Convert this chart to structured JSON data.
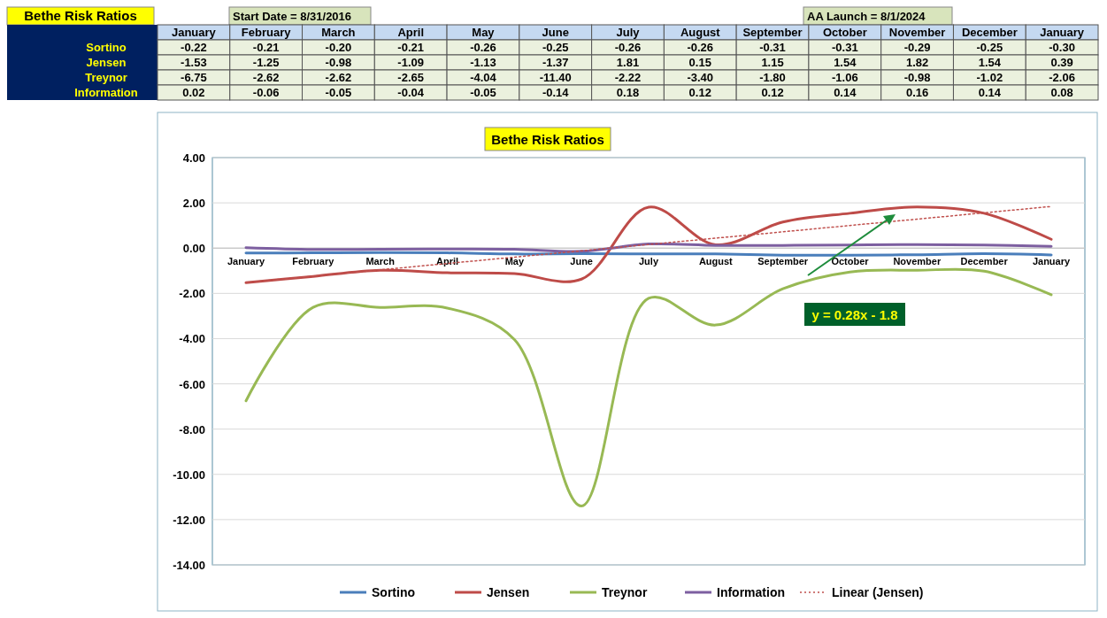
{
  "chart_data": [
    {
      "type": "other",
      "title": "Bethe Risk Ratios",
      "annotations": [
        "Start Date = 8/31/2016",
        "AA Launch = 8/1/2024"
      ],
      "categories": [
        "January",
        "February",
        "March",
        "April",
        "May",
        "June",
        "July",
        "August",
        "September",
        "October",
        "November",
        "December",
        "January"
      ],
      "series": [
        {
          "name": "Sortino",
          "values": [
            -0.22,
            -0.21,
            -0.2,
            -0.21,
            -0.26,
            -0.25,
            -0.26,
            -0.26,
            -0.31,
            -0.31,
            -0.29,
            -0.25,
            -0.3
          ],
          "value_labels": [
            "-0.22",
            "-0.21",
            "-0.20",
            "-0.21",
            "-0.26",
            "-0.25",
            "-0.26",
            "-0.26",
            "-0.31",
            "-0.31",
            "-0.29",
            "-0.25",
            "-0.30"
          ]
        },
        {
          "name": "Jensen",
          "values": [
            -1.53,
            -1.25,
            -0.98,
            -1.09,
            -1.13,
            -1.37,
            1.81,
            0.15,
            1.15,
            1.54,
            1.82,
            1.54,
            0.39
          ],
          "value_labels": [
            "-1.53",
            "-1.25",
            "-0.98",
            "-1.09",
            "-1.13",
            "-1.37",
            "1.81",
            "0.15",
            "1.15",
            "1.54",
            "1.82",
            "1.54",
            "0.39"
          ]
        },
        {
          "name": "Treynor",
          "values": [
            -6.75,
            -2.62,
            -2.62,
            -2.65,
            -4.04,
            -11.4,
            -2.22,
            -3.4,
            -1.8,
            -1.06,
            -0.98,
            -1.02,
            -2.06
          ],
          "value_labels": [
            "-6.75",
            "-2.62",
            "-2.62",
            "-2.65",
            "-4.04",
            "-11.40",
            "-2.22",
            "-3.40",
            "-1.80",
            "-1.06",
            "-0.98",
            "-1.02",
            "-2.06"
          ]
        },
        {
          "name": "Information",
          "values": [
            0.02,
            -0.06,
            -0.05,
            -0.04,
            -0.05,
            -0.14,
            0.18,
            0.12,
            0.12,
            0.14,
            0.16,
            0.14,
            0.08
          ],
          "value_labels": [
            "0.02",
            "-0.06",
            "-0.05",
            "-0.04",
            "-0.05",
            "-0.14",
            "0.18",
            "0.12",
            "0.12",
            "0.14",
            "0.16",
            "0.14",
            "0.08"
          ]
        }
      ]
    },
    {
      "type": "line",
      "title": "Bethe Risk Ratios",
      "categories": [
        "January",
        "February",
        "March",
        "April",
        "May",
        "June",
        "July",
        "August",
        "September",
        "October",
        "November",
        "December",
        "January"
      ],
      "series": [
        {
          "name": "Sortino",
          "color": "#4a7ebb",
          "values": [
            -0.22,
            -0.21,
            -0.2,
            -0.21,
            -0.26,
            -0.25,
            -0.26,
            -0.26,
            -0.31,
            -0.31,
            -0.29,
            -0.25,
            -0.3
          ]
        },
        {
          "name": "Jensen",
          "color": "#be4b48",
          "values": [
            -1.53,
            -1.25,
            -0.98,
            -1.09,
            -1.13,
            -1.37,
            1.81,
            0.15,
            1.15,
            1.54,
            1.82,
            1.54,
            0.39
          ]
        },
        {
          "name": "Treynor",
          "color": "#98b954",
          "values": [
            -6.75,
            -2.62,
            -2.62,
            -2.65,
            -4.04,
            -11.4,
            -2.22,
            -3.4,
            -1.8,
            -1.06,
            -0.98,
            -1.02,
            -2.06
          ]
        },
        {
          "name": "Information",
          "color": "#7d5fa0",
          "values": [
            0.02,
            -0.06,
            -0.05,
            -0.04,
            -0.05,
            -0.14,
            0.18,
            0.12,
            0.12,
            0.14,
            0.16,
            0.14,
            0.08
          ]
        },
        {
          "name": "Linear (Jensen)",
          "color": "#c0504d",
          "type": "line",
          "line_style": "dotted",
          "values": [
            -1.52,
            -1.24,
            -0.96,
            -0.68,
            -0.4,
            -0.12,
            0.16,
            0.44,
            0.72,
            1.0,
            1.28,
            1.56,
            1.84
          ]
        }
      ],
      "ylim": [
        -14,
        4
      ],
      "yticks": [
        {
          "value": -14,
          "label": "-14.00"
        },
        {
          "value": -12,
          "label": "-12.00"
        },
        {
          "value": -10,
          "label": "-10.00"
        },
        {
          "value": -8,
          "label": "-8.00"
        },
        {
          "value": -6,
          "label": "-6.00"
        },
        {
          "value": -4,
          "label": "-4.00"
        },
        {
          "value": -2,
          "label": "-2.00"
        },
        {
          "value": 0,
          "label": "0.00"
        },
        {
          "value": 2,
          "label": "2.00"
        },
        {
          "value": 4,
          "label": "4.00"
        }
      ],
      "grid": "y",
      "legend": "bottom",
      "annotations": [
        "y = 0.28x - 1.8"
      ]
    }
  ]
}
